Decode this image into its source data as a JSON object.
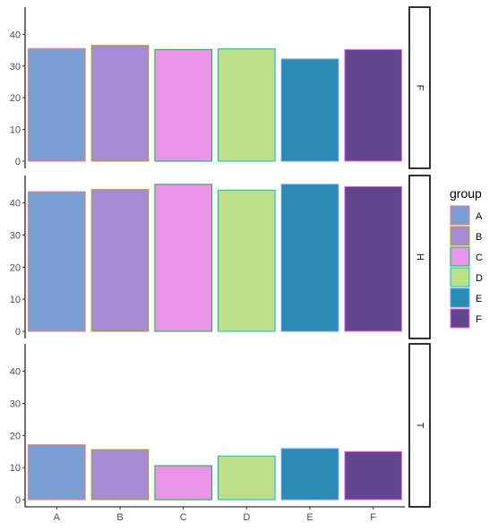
{
  "chart_data": {
    "type": "bar",
    "facet_by": "panel",
    "panels": [
      "F",
      "H",
      "T"
    ],
    "categories": [
      "A",
      "B",
      "C",
      "D",
      "E",
      "F"
    ],
    "ylim": [
      0,
      48
    ],
    "yticks": [
      0,
      10,
      20,
      30,
      40
    ],
    "grid": false,
    "series": [
      {
        "panel": "F",
        "values": [
          35.5,
          36.5,
          35.2,
          35.4,
          32.2,
          35.2
        ]
      },
      {
        "panel": "H",
        "values": [
          43.5,
          44.2,
          45.8,
          44.0,
          45.8,
          45.1
        ]
      },
      {
        "panel": "T",
        "values": [
          17.1,
          15.6,
          10.6,
          13.6,
          15.9,
          15.0
        ]
      }
    ],
    "legend": {
      "title": "group",
      "position": "right",
      "labels": [
        "A",
        "B",
        "C",
        "D",
        "E",
        "F"
      ]
    },
    "fill_colors": [
      "#7b9fd4",
      "#a48bd3",
      "#ea94ea",
      "#bcdf88",
      "#2c8bb3",
      "#61468f"
    ],
    "outline_colors": [
      "#f8766d",
      "#b79f00",
      "#00ba38",
      "#00bfc4",
      "#619cff",
      "#f564e3"
    ],
    "xlabel": "",
    "ylabel": ""
  }
}
